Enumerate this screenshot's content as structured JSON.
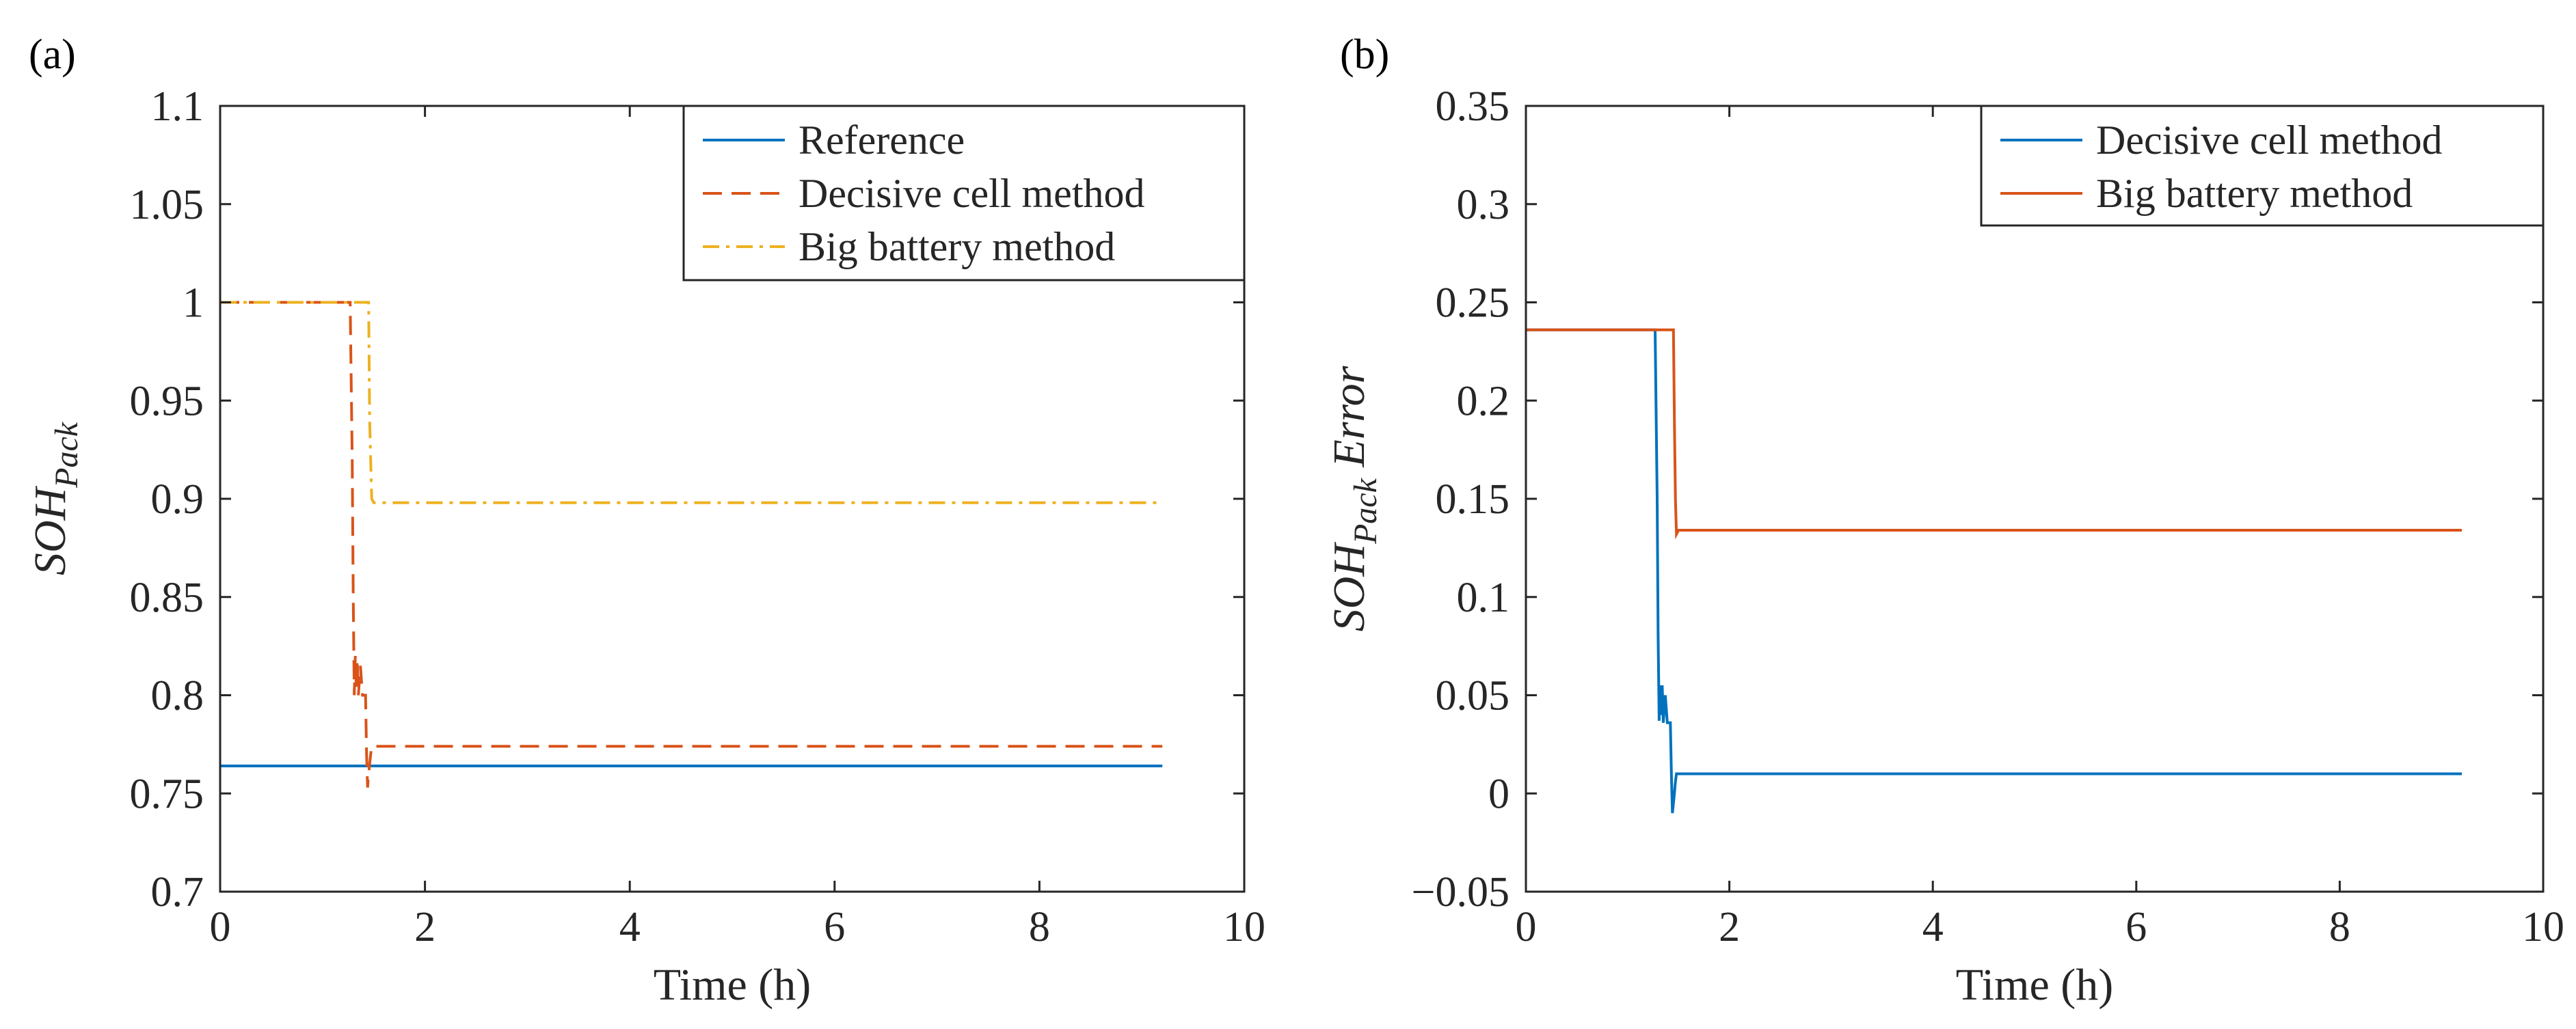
{
  "chart_data": [
    {
      "type": "line",
      "panel_label": "(a)",
      "xlabel": "Time (h)",
      "ylabel": {
        "main": "SOH",
        "sub": "Pack",
        "rest": ""
      },
      "xlim": [
        0,
        10
      ],
      "ylim": [
        0.7,
        1.1
      ],
      "xticks": [
        0,
        2,
        4,
        6,
        8,
        10
      ],
      "xtick_labels": [
        "0",
        "2",
        "4",
        "6",
        "8",
        "10"
      ],
      "yticks": [
        0.7,
        0.75,
        0.8,
        0.85,
        0.9,
        0.95,
        1.0,
        1.05,
        1.1
      ],
      "ytick_labels": [
        "0.7",
        "0.75",
        "0.8",
        "0.85",
        "0.9",
        "0.95",
        "1",
        "1.05",
        "1.1"
      ],
      "legend_position": "top-right",
      "grid": false,
      "series": [
        {
          "name": "Reference",
          "color": "#0072BD",
          "dash": "solid",
          "x": [
            0,
            9.2
          ],
          "y": [
            0.764,
            0.764
          ]
        },
        {
          "name": "Decisive cell method",
          "color": "#D95319",
          "dash": "dashed",
          "x": [
            0,
            1.27,
            1.29,
            1.3,
            1.31,
            1.32,
            1.33,
            1.34,
            1.35,
            1.37,
            1.39,
            1.4,
            1.42,
            1.43,
            1.44,
            1.45,
            1.46,
            1.47,
            1.48,
            1.5,
            9.2
          ],
          "y": [
            1.0,
            1.0,
            0.92,
            0.85,
            0.8,
            0.82,
            0.803,
            0.818,
            0.8,
            0.815,
            0.8,
            0.8,
            0.8,
            0.77,
            0.753,
            0.76,
            0.765,
            0.77,
            0.774,
            0.774,
            0.774
          ]
        },
        {
          "name": "Big battery method",
          "color": "#EDB120",
          "dash": "dashdot",
          "x": [
            0,
            1.45,
            1.46,
            1.48,
            1.5,
            9.2
          ],
          "y": [
            1.0,
            1.0,
            0.94,
            0.9,
            0.898,
            0.898
          ]
        }
      ]
    },
    {
      "type": "line",
      "panel_label": "(b)",
      "xlabel": "Time (h)",
      "ylabel": {
        "main": "SOH",
        "sub": "Pack",
        "rest": "Error"
      },
      "xlim": [
        0,
        10
      ],
      "ylim": [
        -0.05,
        0.35
      ],
      "xticks": [
        0,
        2,
        4,
        6,
        8,
        10
      ],
      "xtick_labels": [
        "0",
        "2",
        "4",
        "6",
        "8",
        "10"
      ],
      "yticks": [
        -0.05,
        0,
        0.05,
        0.1,
        0.15,
        0.2,
        0.25,
        0.3,
        0.35
      ],
      "ytick_labels": [
        "−0.05",
        "0",
        "0.05",
        "0.1",
        "0.15",
        "0.2",
        "0.25",
        "0.3",
        "0.35"
      ],
      "legend_position": "top-right",
      "grid": false,
      "series": [
        {
          "name": "Decisive cell method",
          "color": "#0072BD",
          "dash": "solid",
          "x": [
            0,
            1.27,
            1.29,
            1.3,
            1.31,
            1.32,
            1.33,
            1.34,
            1.35,
            1.37,
            1.39,
            1.4,
            1.42,
            1.43,
            1.44,
            1.45,
            1.46,
            1.47,
            1.48,
            1.5,
            9.2
          ],
          "y": [
            0.236,
            0.236,
            0.15,
            0.08,
            0.037,
            0.055,
            0.04,
            0.055,
            0.036,
            0.05,
            0.036,
            0.036,
            0.036,
            0.01,
            -0.01,
            -0.005,
            0.0,
            0.006,
            0.01,
            0.01,
            0.01
          ]
        },
        {
          "name": "Big battery method",
          "color": "#D95319",
          "dash": "solid",
          "x": [
            0,
            1.45,
            1.46,
            1.47,
            1.48,
            1.5,
            9.2
          ],
          "y": [
            0.236,
            0.236,
            0.19,
            0.15,
            0.132,
            0.134,
            0.134
          ]
        }
      ]
    }
  ]
}
